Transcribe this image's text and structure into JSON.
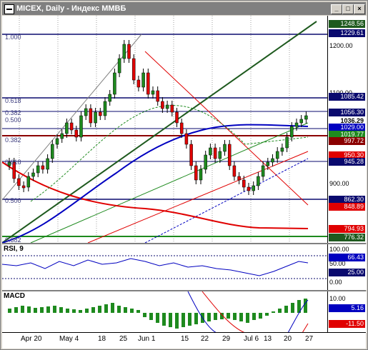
{
  "window": {
    "title": "MICEX, Daily - Индекс ММВБ",
    "min": "_",
    "max": "□",
    "close": "×"
  },
  "price_panel": {
    "fib_labels": [
      {
        "t": "1.000",
        "y": 35
      },
      {
        "t": "0.618",
        "y": 124
      },
      {
        "t": "0.382",
        "y": 141
      },
      {
        "t": "0.500",
        "y": 151
      },
      {
        "t": "0.382",
        "y": 179
      },
      {
        "t": "0.618",
        "y": 210
      },
      {
        "t": "0.500",
        "y": 264
      },
      {
        "t": "0.382",
        "y": 319
      }
    ],
    "axis_labels": [
      "1200.00",
      "1100.00",
      "1000.00",
      "900.00"
    ],
    "price_tags": [
      {
        "t": "1248.56",
        "bg": "#1e5a1e",
        "fg": "#ffffff"
      },
      {
        "t": "1229.61",
        "bg": "#0a0a6e",
        "fg": "#ffffff"
      },
      {
        "t": "1085.42",
        "bg": "#0a0a6e",
        "fg": "#ffffff"
      },
      {
        "t": "1056.30",
        "bg": "#0a0a6e",
        "fg": "#ffffff"
      },
      {
        "t": "1036.29",
        "bg": "#ffffff",
        "fg": "#000000"
      },
      {
        "t": "1029.00",
        "bg": "#0000c0",
        "fg": "#ffffff"
      },
      {
        "t": "1019.77",
        "bg": "#1e8a1e",
        "fg": "#ffffff"
      },
      {
        "t": "997.72",
        "bg": "#8b0000",
        "fg": "#ffffff"
      },
      {
        "t": "950.30",
        "bg": "#e00000",
        "fg": "#ffffff"
      },
      {
        "t": "945.28",
        "bg": "#0a0a6e",
        "fg": "#ffffff"
      },
      {
        "t": "862.30",
        "bg": "#0a0a6e",
        "fg": "#ffffff"
      },
      {
        "t": "848.89",
        "bg": "#e00000",
        "fg": "#ffffff"
      },
      {
        "t": "794.93",
        "bg": "#e00000",
        "fg": "#ffffff"
      },
      {
        "t": "776.32",
        "bg": "#1e5a1e",
        "fg": "#ffffff"
      }
    ]
  },
  "rsi_panel": {
    "label": "RSI, 9",
    "axis_labels": [
      "100.00",
      "50.00",
      "25.00",
      "0.00"
    ],
    "tag": "66.43"
  },
  "macd_panel": {
    "label": "MACD",
    "axis_labels": [
      "10.00",
      "0.00"
    ],
    "tags": [
      "5.16",
      "-11.50"
    ]
  },
  "x_axis": {
    "labels": [
      "Apr 20",
      "May 4",
      "18",
      "25",
      "Jun 1",
      "15",
      "22",
      "29",
      "Jul 6",
      "13",
      "20",
      "27"
    ]
  }
}
